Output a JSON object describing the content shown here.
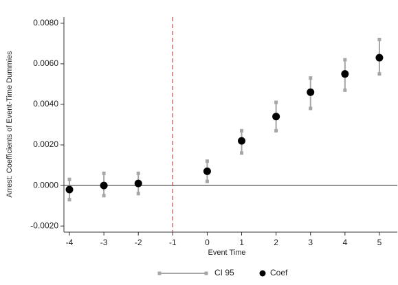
{
  "chart_data": {
    "type": "errorbar",
    "xlabel": "Event Time",
    "ylabel": "Arrest: Coefficients of Event-Time Dummies",
    "x": [
      -4,
      -3,
      -2,
      0,
      1,
      2,
      3,
      4,
      5
    ],
    "series": [
      {
        "name": "CI 95",
        "color": "#a6a6a6",
        "lower": [
          -0.0007,
          -0.0005,
          -0.0004,
          0.0002,
          0.0016,
          0.0027,
          0.0038,
          0.0047,
          0.0055
        ],
        "upper": [
          0.0003,
          0.0006,
          0.0006,
          0.0012,
          0.0027,
          0.0041,
          0.0053,
          0.0062,
          0.0072
        ]
      },
      {
        "name": "Coef",
        "color": "#000000",
        "values": [
          -0.0002,
          0.0,
          0.0001,
          0.0007,
          0.0022,
          0.0034,
          0.0046,
          0.0055,
          0.0063
        ]
      }
    ],
    "xlim": [
      -4.16,
      5.52
    ],
    "xticks": [
      -4,
      -3,
      -2,
      -1,
      0,
      1,
      2,
      3,
      4,
      5
    ],
    "ylim": [
      -0.0023,
      0.0083
    ],
    "yticks": [
      {
        "value": -0.002,
        "label": "-0.0020"
      },
      {
        "value": 0,
        "label": "0.0000"
      },
      {
        "value": 0.002,
        "label": "0.0020"
      },
      {
        "value": 0.004,
        "label": "0.0040"
      },
      {
        "value": 0.006,
        "label": "0.0060"
      },
      {
        "value": 0.008,
        "label": "0.0080"
      }
    ],
    "reference_line": {
      "x": -1,
      "color": "#c0504d"
    },
    "zero_line": {
      "y": 0,
      "color": "#444444"
    },
    "legend": "bottom"
  }
}
